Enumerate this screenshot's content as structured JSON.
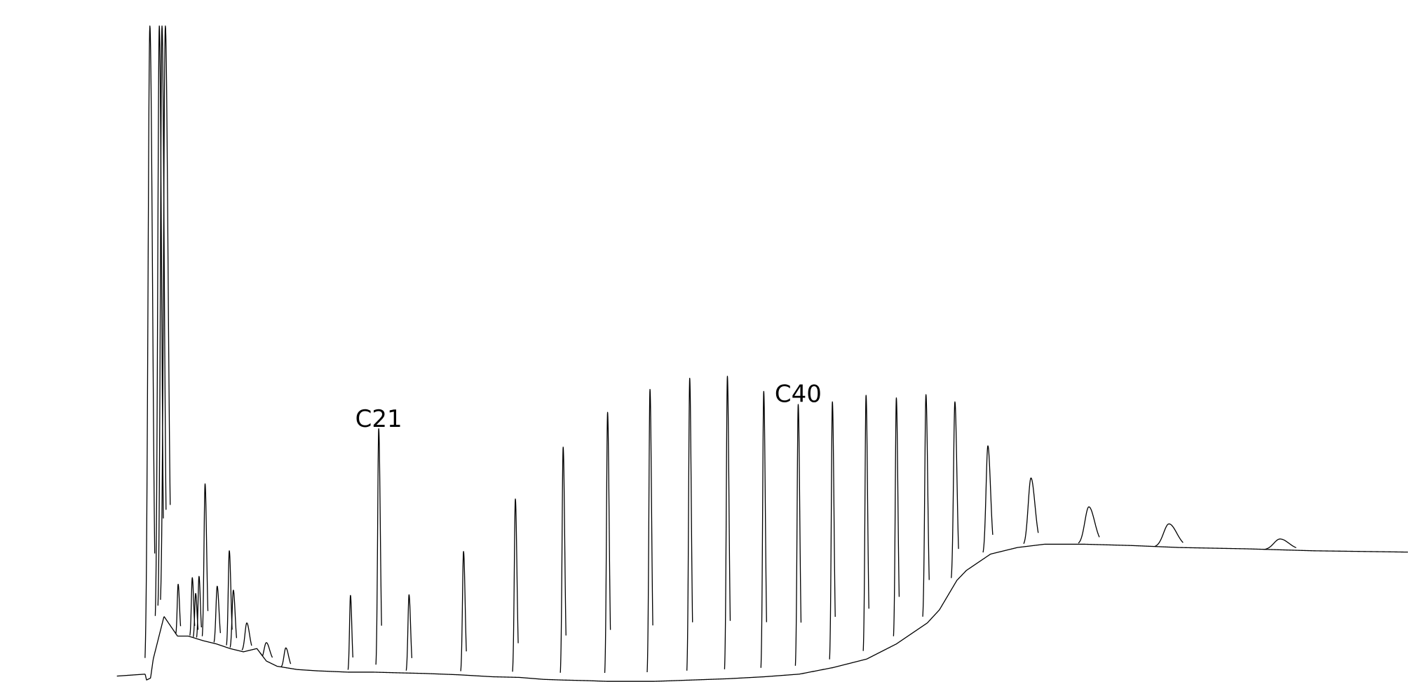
{
  "chart_data": {
    "type": "line",
    "title": "",
    "xlabel": "",
    "ylabel": "",
    "grid": false,
    "legend": "none",
    "line_color": "#000000",
    "xlim": [
      0,
      1
    ],
    "ylim": [
      0,
      1
    ],
    "annotations": [
      {
        "text": "C21",
        "x": 0.2355,
        "y": 0.3889
      },
      {
        "text": "C40",
        "x": 0.5471,
        "y": 0.4266
      }
    ],
    "baseline": [
      [
        0.041,
        0.009
      ],
      [
        0.062,
        0.012
      ],
      [
        0.063,
        0.003
      ],
      [
        0.066,
        0.006
      ],
      [
        0.068,
        0.035
      ],
      [
        0.076,
        0.1
      ],
      [
        0.086,
        0.07
      ],
      [
        0.094,
        0.07
      ],
      [
        0.105,
        0.063
      ],
      [
        0.115,
        0.058
      ],
      [
        0.125,
        0.051
      ],
      [
        0.135,
        0.046
      ],
      [
        0.145,
        0.051
      ],
      [
        0.152,
        0.032
      ],
      [
        0.16,
        0.024
      ],
      [
        0.175,
        0.019
      ],
      [
        0.19,
        0.017
      ],
      [
        0.213,
        0.015
      ],
      [
        0.232,
        0.015
      ],
      [
        0.25,
        0.014
      ],
      [
        0.27,
        0.013
      ],
      [
        0.295,
        0.011
      ],
      [
        0.32,
        0.008
      ],
      [
        0.34,
        0.007
      ],
      [
        0.358,
        0.004
      ],
      [
        0.372,
        0.003
      ],
      [
        0.392,
        0.002
      ],
      [
        0.405,
        0.001
      ],
      [
        0.44,
        0.001
      ],
      [
        0.468,
        0.003
      ],
      [
        0.495,
        0.005
      ],
      [
        0.522,
        0.008
      ],
      [
        0.548,
        0.012
      ],
      [
        0.573,
        0.022
      ],
      [
        0.598,
        0.035
      ],
      [
        0.62,
        0.058
      ],
      [
        0.643,
        0.09
      ],
      [
        0.652,
        0.11
      ],
      [
        0.665,
        0.155
      ],
      [
        0.672,
        0.17
      ],
      [
        0.69,
        0.195
      ],
      [
        0.71,
        0.205
      ],
      [
        0.73,
        0.21
      ],
      [
        0.76,
        0.21
      ],
      [
        0.795,
        0.208
      ],
      [
        0.83,
        0.205
      ],
      [
        0.88,
        0.203
      ],
      [
        0.93,
        0.2
      ],
      [
        1.0,
        0.198
      ]
    ],
    "peaks": [
      {
        "x": 0.0655,
        "y": 1.0,
        "w": 0.0012
      },
      {
        "x": 0.0725,
        "y": 1.0,
        "w": 0.001
      },
      {
        "x": 0.0745,
        "y": 1.0,
        "w": 0.001
      },
      {
        "x": 0.077,
        "y": 1.0,
        "w": 0.0012
      },
      {
        "x": 0.0865,
        "y": 0.149,
        "w": 0.0006
      },
      {
        "x": 0.097,
        "y": 0.159,
        "w": 0.0006
      },
      {
        "x": 0.0995,
        "y": 0.135,
        "w": 0.0006
      },
      {
        "x": 0.102,
        "y": 0.161,
        "w": 0.0006
      },
      {
        "x": 0.1065,
        "y": 0.302,
        "w": 0.0007
      },
      {
        "x": 0.1155,
        "y": 0.146,
        "w": 0.0008
      },
      {
        "x": 0.1245,
        "y": 0.2,
        "w": 0.0007
      },
      {
        "x": 0.1275,
        "y": 0.14,
        "w": 0.0008
      },
      {
        "x": 0.1375,
        "y": 0.09,
        "w": 0.0012
      },
      {
        "x": 0.152,
        "y": 0.06,
        "w": 0.0015
      },
      {
        "x": 0.1665,
        "y": 0.052,
        "w": 0.0012
      },
      {
        "x": 0.2145,
        "y": 0.132,
        "w": 0.0006
      },
      {
        "x": 0.2355,
        "y": 0.386,
        "w": 0.0007
      },
      {
        "x": 0.258,
        "y": 0.133,
        "w": 0.0007
      },
      {
        "x": 0.2985,
        "y": 0.199,
        "w": 0.0007
      },
      {
        "x": 0.337,
        "y": 0.279,
        "w": 0.0007
      },
      {
        "x": 0.3725,
        "y": 0.358,
        "w": 0.0007
      },
      {
        "x": 0.4055,
        "y": 0.411,
        "w": 0.0007
      },
      {
        "x": 0.437,
        "y": 0.446,
        "w": 0.0007
      },
      {
        "x": 0.4665,
        "y": 0.463,
        "w": 0.0007
      },
      {
        "x": 0.4945,
        "y": 0.466,
        "w": 0.0007
      },
      {
        "x": 0.5215,
        "y": 0.443,
        "w": 0.0007
      },
      {
        "x": 0.5471,
        "y": 0.423,
        "w": 0.0007
      },
      {
        "x": 0.5725,
        "y": 0.427,
        "w": 0.0007
      },
      {
        "x": 0.5975,
        "y": 0.437,
        "w": 0.0007
      },
      {
        "x": 0.62,
        "y": 0.433,
        "w": 0.0007
      },
      {
        "x": 0.642,
        "y": 0.438,
        "w": 0.0008
      },
      {
        "x": 0.6635,
        "y": 0.427,
        "w": 0.0009
      },
      {
        "x": 0.688,
        "y": 0.36,
        "w": 0.0012
      },
      {
        "x": 0.72,
        "y": 0.311,
        "w": 0.0018
      },
      {
        "x": 0.763,
        "y": 0.267,
        "w": 0.0026
      },
      {
        "x": 0.8225,
        "y": 0.241,
        "w": 0.0035
      },
      {
        "x": 0.905,
        "y": 0.218,
        "w": 0.004
      }
    ]
  }
}
